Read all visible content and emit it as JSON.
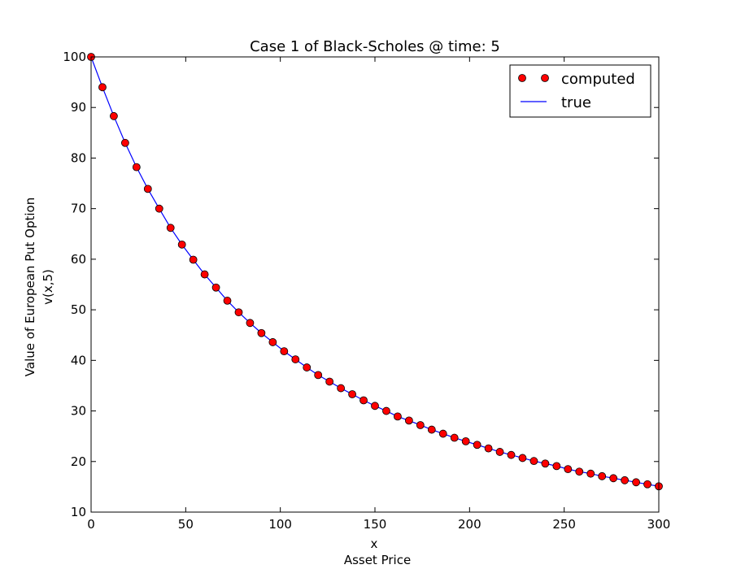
{
  "chart_data": {
    "type": "line",
    "title": "Case 1 of Black-Scholes @ time: 5",
    "xlabel_lines": [
      "x",
      "Asset Price"
    ],
    "ylabel_lines": [
      "Value of European Put Option",
      "v(x,5)"
    ],
    "xlim": [
      0,
      300
    ],
    "ylim": [
      10,
      100
    ],
    "xticks": [
      0,
      50,
      100,
      150,
      200,
      250,
      300
    ],
    "yticks": [
      10,
      20,
      30,
      40,
      50,
      60,
      70,
      80,
      90,
      100
    ],
    "grid": false,
    "legend_position": "top-right",
    "series": [
      {
        "name": "computed",
        "style": "markers",
        "color": "#ff0000",
        "x": [
          0,
          6,
          12,
          18,
          24,
          30,
          36,
          42,
          48,
          54,
          60,
          66,
          72,
          78,
          84,
          90,
          96,
          102,
          108,
          114,
          120,
          126,
          132,
          138,
          144,
          150,
          156,
          162,
          168,
          174,
          180,
          186,
          192,
          198,
          204,
          210,
          216,
          222,
          228,
          234,
          240,
          246,
          252,
          258,
          264,
          270,
          276,
          282,
          288,
          294,
          300
        ],
        "y": [
          100,
          94.0,
          88.3,
          83.0,
          78.2,
          73.9,
          70.0,
          66.2,
          62.9,
          59.9,
          57.0,
          54.4,
          51.8,
          49.5,
          47.4,
          45.4,
          43.6,
          41.8,
          40.2,
          38.6,
          37.1,
          35.8,
          34.5,
          33.3,
          32.1,
          31.0,
          30.0,
          28.9,
          28.1,
          27.2,
          26.3,
          25.5,
          24.7,
          24.0,
          23.3,
          22.6,
          21.9,
          21.3,
          20.7,
          20.1,
          19.6,
          19.1,
          18.5,
          18.0,
          17.6,
          17.1,
          16.7,
          16.3,
          15.9,
          15.5,
          15.1
        ]
      },
      {
        "name": "true",
        "style": "line",
        "color": "#0000ff",
        "x": [
          0,
          6,
          12,
          18,
          24,
          30,
          36,
          42,
          48,
          54,
          60,
          66,
          72,
          78,
          84,
          90,
          96,
          102,
          108,
          114,
          120,
          126,
          132,
          138,
          144,
          150,
          156,
          162,
          168,
          174,
          180,
          186,
          192,
          198,
          204,
          210,
          216,
          222,
          228,
          234,
          240,
          246,
          252,
          258,
          264,
          270,
          276,
          282,
          288,
          294,
          300
        ],
        "y": [
          100,
          94.0,
          88.3,
          83.0,
          78.2,
          73.9,
          70.0,
          66.2,
          62.9,
          59.9,
          57.0,
          54.4,
          51.8,
          49.5,
          47.4,
          45.4,
          43.6,
          41.8,
          40.2,
          38.6,
          37.1,
          35.8,
          34.5,
          33.3,
          32.1,
          31.0,
          30.0,
          28.9,
          28.1,
          27.2,
          26.3,
          25.5,
          24.7,
          24.0,
          23.3,
          22.6,
          21.9,
          21.3,
          20.7,
          20.1,
          19.6,
          19.1,
          18.5,
          18.0,
          17.6,
          17.1,
          16.7,
          16.3,
          15.9,
          15.5,
          15.1
        ]
      }
    ]
  }
}
